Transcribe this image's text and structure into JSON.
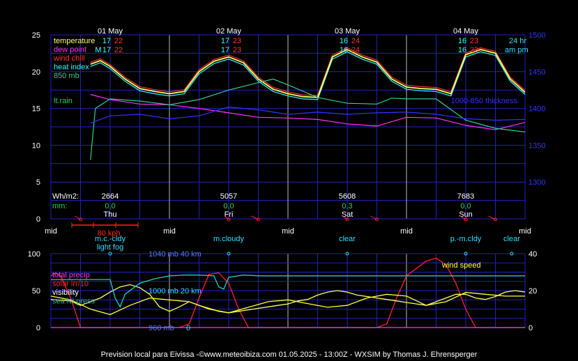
{
  "footer": "Prevision local para Eivissa -©www.meteoibiza.com 01.05.2025 - 13:00Z - WXSIM by Thomas J. Ehrensperger",
  "colors": {
    "temperature": "#ffff66",
    "dewpoint": "#ff33ff",
    "windchill": "#ff3333",
    "heatindex": "#33ffff",
    "mb850": "#33cc99",
    "rain": "#33cc66",
    "thickness": "#3333ff",
    "grid": "#2222bb",
    "daysep": "#bbbbbb",
    "solar": "#ff2222",
    "visibility": "#22cccc",
    "precip": "#ff33ff",
    "slp": "#33aaaa",
    "wind": "#ffff33",
    "cyan_label": "#33ddff"
  },
  "chart_data": [
    {
      "type": "line",
      "ylim_left": [
        0,
        25
      ],
      "yticks_left": [
        "0",
        "5",
        "10",
        "15",
        "20",
        "25"
      ],
      "ylim_right": [
        1250,
        1500
      ],
      "yticks_right": [
        "1300",
        "1350",
        "1400",
        "1450",
        "1500"
      ],
      "x_hours": [
        -12,
        84
      ],
      "xticks": [
        "mid",
        "mid",
        "mid",
        "mid",
        "mid"
      ],
      "date_labels": [
        "01 May",
        "02 May",
        "03 May",
        "04 May"
      ],
      "day_labels": [
        "Thu",
        "Fri",
        "Sat",
        "Sun"
      ],
      "legend": [
        {
          "label": "temperature",
          "color": "#ffff66"
        },
        {
          "label": "dew point",
          "color": "#ff33ff"
        },
        {
          "label": "wind chill",
          "color": "#ff3333"
        },
        {
          "label": "heat index",
          "color": "#33ffff"
        },
        {
          "label": "850 mb",
          "color": "#33cc99"
        },
        {
          "label": "lt.rain",
          "color": "#33cc66"
        }
      ],
      "thickness_label": "1000-850 thickness",
      "min_max": [
        {
          "min": "17",
          "max": "22",
          "prefix": "M"
        },
        {
          "min": "17",
          "max": "23"
        },
        {
          "min": "16",
          "max": "24"
        },
        {
          "min": "16",
          "max": "23"
        }
      ],
      "hr_label": "24 hr",
      "ampm_label": "am pm",
      "solar_label": "Wh/m2:",
      "solar_values": [
        "2664",
        "5057",
        "5608",
        "7683"
      ],
      "rain_label": "mm:",
      "rain_values": [
        "0,0",
        "0,0",
        "0,3",
        "0,0"
      ],
      "wind_scale_label": "80 kph",
      "series": [
        {
          "name": "temperature",
          "x": [
            -4,
            -2,
            0,
            3,
            6,
            9,
            12,
            15,
            18,
            21,
            24,
            27,
            30,
            33,
            36,
            39,
            42,
            45,
            48,
            51,
            54,
            57,
            60,
            63,
            66,
            69,
            72,
            75,
            78,
            81,
            84
          ],
          "y": [
            21,
            21.5,
            20.7,
            19,
            17.7,
            17.3,
            17,
            17.3,
            20,
            21.4,
            22,
            21.2,
            19,
            17.6,
            17,
            16.6,
            16.5,
            22,
            23,
            22,
            21.3,
            19,
            17.9,
            17.7,
            17.6,
            17,
            22.3,
            23,
            22.5,
            19,
            17.2
          ]
        },
        {
          "name": "dew point",
          "x": [
            -4,
            0,
            6,
            12,
            18,
            24,
            30,
            36,
            42,
            48,
            54,
            60,
            66,
            72,
            78,
            84
          ],
          "y": [
            16.9,
            16.2,
            15.6,
            15.5,
            15,
            14.4,
            13.8,
            13.7,
            13.5,
            12.9,
            12.6,
            13.8,
            13.7,
            12.7,
            12.1,
            13.1
          ]
        },
        {
          "name": "850 mb",
          "x": [
            -4,
            -3,
            0,
            6,
            12,
            18,
            24,
            30,
            33,
            36,
            42,
            48,
            54,
            57,
            60,
            66,
            72,
            78,
            84
          ],
          "y": [
            8,
            15,
            16.3,
            16,
            15.5,
            16.2,
            17.5,
            18.5,
            19,
            18.2,
            16.5,
            15.7,
            15.6,
            16.4,
            16.3,
            16.3,
            13.4,
            12.3,
            11.8
          ]
        },
        {
          "name": "1000-850 thickness",
          "x": [
            -4,
            0,
            6,
            12,
            18,
            24,
            30,
            36,
            42,
            48,
            54,
            60,
            66,
            72,
            78,
            84
          ],
          "y": [
            1380,
            1390,
            1392,
            1386,
            1390,
            1402,
            1398,
            1392,
            1395,
            1392,
            1394,
            1395,
            1392,
            1386,
            1384,
            1385
          ]
        }
      ]
    },
    {
      "type": "line",
      "ylim_left": [
        0,
        100
      ],
      "yticks_left": [
        "0",
        "50",
        "100"
      ],
      "ylim_right": [
        0,
        40
      ],
      "yticks_right": [
        "0",
        "20",
        "40"
      ],
      "weather_labels": [
        {
          "text": "m.c.-cldy",
          "hour": 0
        },
        {
          "text": "light fog",
          "hour": 0
        },
        {
          "text": "m.cloudy",
          "hour": 24
        },
        {
          "text": "clear",
          "hour": 48
        },
        {
          "text": "p.-m.cldy",
          "hour": 72
        },
        {
          "text": "clear",
          "hour": 96
        }
      ],
      "pressure_labels": [
        "1040 mb 40 km",
        "1000 mb 20 km",
        "960 mb",
        "0"
      ],
      "legend": [
        {
          "label": "total precip",
          "color": "#ff33ff"
        },
        {
          "label": "solar irr/10",
          "color": "#ff2222"
        },
        {
          "label": "visibility",
          "color": "#ffffff"
        },
        {
          "label": "sea lvl press",
          "color": "#33aaaa"
        }
      ],
      "wind_label": "wind speed",
      "series": [
        {
          "name": "solar irr/10",
          "x": [
            -12,
            -11,
            -10,
            -8,
            -6,
            -4,
            -2,
            0,
            2,
            4,
            6,
            8,
            10,
            12,
            14,
            16,
            18,
            20,
            22,
            24,
            26,
            28,
            30,
            32,
            34,
            36,
            38,
            40,
            42,
            44,
            46,
            48,
            50,
            52,
            54,
            56,
            58,
            60,
            62,
            64,
            66,
            68,
            70,
            72,
            74,
            76,
            78,
            80,
            82,
            84
          ],
          "y": [
            70,
            74,
            70,
            40,
            0,
            0,
            0,
            0,
            0,
            0,
            0,
            0,
            0,
            0,
            0,
            5,
            40,
            72,
            74,
            60,
            25,
            0,
            0,
            0,
            0,
            0,
            0,
            0,
            0,
            0,
            0,
            0,
            0,
            0,
            0,
            5,
            40,
            70,
            80,
            90,
            94,
            85,
            60,
            25,
            0,
            0,
            0,
            0,
            0,
            0
          ]
        },
        {
          "name": "visibility",
          "x": [
            -12,
            -10,
            -8,
            -6,
            -4,
            -2,
            0,
            2,
            4,
            6,
            8,
            10,
            12,
            14,
            16,
            18,
            20,
            22,
            24,
            26,
            28,
            30,
            32,
            34,
            36,
            38,
            40,
            42,
            44,
            46,
            48,
            50,
            52,
            54,
            56,
            58,
            60,
            62,
            64,
            66,
            68,
            70,
            72,
            74,
            76,
            78,
            80,
            82,
            84
          ],
          "y": [
            38,
            37,
            36,
            30,
            35,
            40,
            48,
            55,
            58,
            54,
            45,
            28,
            22,
            28,
            35,
            30,
            26,
            22,
            20,
            22,
            24,
            26,
            28,
            30,
            32,
            36,
            38,
            44,
            48,
            50,
            48,
            44,
            42,
            40,
            38,
            36,
            34,
            32,
            30,
            35,
            40,
            45,
            45,
            40,
            38,
            42,
            48,
            50,
            48
          ]
        },
        {
          "name": "sea lvl press",
          "x": [
            -12,
            -8,
            -4,
            0,
            1,
            2,
            3,
            6,
            9,
            12,
            15,
            18,
            21,
            22,
            23,
            24,
            27,
            30,
            33,
            36,
            39,
            42,
            45,
            48,
            51,
            54,
            57,
            60,
            63,
            66,
            69,
            72,
            75,
            78,
            81,
            84
          ],
          "y": [
            65,
            65,
            65,
            65,
            40,
            28,
            45,
            60,
            66,
            70,
            71,
            71,
            70,
            55,
            52,
            68,
            71,
            70,
            70,
            70,
            70,
            70,
            70,
            70,
            70,
            70,
            70,
            70,
            70,
            70,
            70,
            70,
            70,
            70,
            70,
            70
          ]
        },
        {
          "name": "wind speed",
          "x": [
            -12,
            -8,
            -4,
            0,
            4,
            8,
            12,
            16,
            20,
            24,
            28,
            32,
            36,
            40,
            44,
            48,
            52,
            56,
            60,
            64,
            68,
            72,
            76,
            80,
            84
          ],
          "y": [
            17,
            15,
            10,
            7,
            12,
            16,
            15,
            14,
            10,
            8,
            11,
            14,
            15,
            13,
            11,
            12,
            16,
            18,
            17,
            12,
            14,
            19,
            18,
            17,
            17
          ]
        },
        {
          "name": "total precip",
          "x": [
            -12,
            84
          ],
          "y": [
            0,
            0
          ]
        }
      ]
    }
  ]
}
